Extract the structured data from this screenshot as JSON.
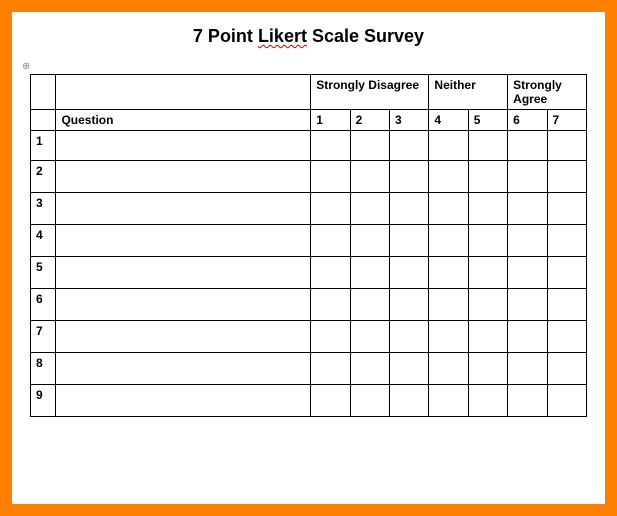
{
  "title_prefix": "7 Point ",
  "title_underlined": "Likert",
  "title_suffix": " Scale Survey",
  "anchor_symbol": "⊕",
  "headers": {
    "question": "Question",
    "group_strongly_disagree": "Strongly Disagree",
    "group_neither": "Neither",
    "group_strongly_agree": "Strongly Agree",
    "scale": [
      "1",
      "2",
      "3",
      "4",
      "5",
      "6",
      "7"
    ]
  },
  "rows": [
    {
      "num": "1",
      "question": ""
    },
    {
      "num": "2",
      "question": ""
    },
    {
      "num": "3",
      "question": ""
    },
    {
      "num": "4",
      "question": ""
    },
    {
      "num": "5",
      "question": ""
    },
    {
      "num": "6",
      "question": ""
    },
    {
      "num": "7",
      "question": ""
    },
    {
      "num": "8",
      "question": ""
    },
    {
      "num": "9",
      "question": ""
    }
  ],
  "colors": {
    "frame": "#ff7f00",
    "border": "#000000",
    "background": "#ffffff",
    "underline": "#cc0000"
  }
}
